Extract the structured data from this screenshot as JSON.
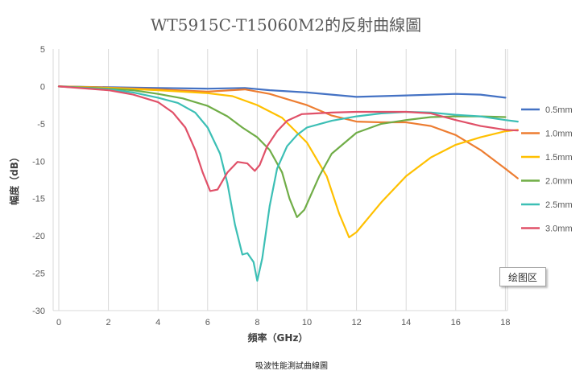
{
  "chart_data": {
    "type": "line",
    "title": "WT5915C-T15060M2的反射曲線圖",
    "xlabel": "頻率（GHz）",
    "ylabel": "幅度（dB）",
    "xlim": [
      0,
      18
    ],
    "ylim": [
      -30,
      5
    ],
    "x_ticks": [
      0,
      2,
      4,
      6,
      8,
      10,
      12,
      14,
      16,
      18
    ],
    "y_ticks": [
      5,
      0,
      -5,
      -10,
      -15,
      -20,
      -25,
      -30
    ],
    "grid": "vertical",
    "legend_position": "right",
    "series": [
      {
        "name": "0.5mm",
        "color": "#4472C4",
        "points": [
          [
            0,
            0
          ],
          [
            2,
            -0.1
          ],
          [
            4,
            -0.2
          ],
          [
            6,
            -0.3
          ],
          [
            7.5,
            -0.2
          ],
          [
            8.5,
            -0.5
          ],
          [
            10,
            -0.8
          ],
          [
            11,
            -1.1
          ],
          [
            12,
            -1.4
          ],
          [
            14,
            -1.2
          ],
          [
            16,
            -1.0
          ],
          [
            17,
            -1.1
          ],
          [
            18,
            -1.5
          ]
        ]
      },
      {
        "name": "1.0mm",
        "color": "#ED7D31",
        "points": [
          [
            0,
            0
          ],
          [
            2,
            -0.15
          ],
          [
            4,
            -0.4
          ],
          [
            6,
            -0.7
          ],
          [
            7.5,
            -0.4
          ],
          [
            8.5,
            -1.0
          ],
          [
            10,
            -2.5
          ],
          [
            11,
            -3.9
          ],
          [
            12,
            -4.7
          ],
          [
            13,
            -4.8
          ],
          [
            14,
            -4.8
          ],
          [
            15,
            -5.3
          ],
          [
            16,
            -6.5
          ],
          [
            17,
            -8.5
          ],
          [
            18,
            -11.0
          ],
          [
            18.5,
            -12.3
          ]
        ]
      },
      {
        "name": "1.5mm",
        "color": "#FFC000",
        "points": [
          [
            0,
            0
          ],
          [
            2,
            -0.2
          ],
          [
            4,
            -0.5
          ],
          [
            6,
            -0.9
          ],
          [
            7,
            -1.3
          ],
          [
            8,
            -2.5
          ],
          [
            9,
            -4.2
          ],
          [
            10,
            -7.5
          ],
          [
            10.8,
            -12
          ],
          [
            11.3,
            -17
          ],
          [
            11.7,
            -20.2
          ],
          [
            12,
            -19.5
          ],
          [
            12.5,
            -17.5
          ],
          [
            13,
            -15.5
          ],
          [
            14,
            -12
          ],
          [
            15,
            -9.5
          ],
          [
            16,
            -7.8
          ],
          [
            17,
            -6.8
          ],
          [
            18,
            -6.0
          ],
          [
            18.5,
            -5.8
          ]
        ]
      },
      {
        "name": "2.0mm",
        "color": "#70AD47",
        "points": [
          [
            0,
            0
          ],
          [
            2,
            -0.3
          ],
          [
            3,
            -0.5
          ],
          [
            4,
            -1.0
          ],
          [
            5,
            -1.6
          ],
          [
            6,
            -2.6
          ],
          [
            6.8,
            -4.0
          ],
          [
            7.4,
            -5.5
          ],
          [
            8,
            -6.8
          ],
          [
            8.5,
            -8.5
          ],
          [
            9,
            -11.5
          ],
          [
            9.3,
            -15
          ],
          [
            9.6,
            -17.5
          ],
          [
            9.9,
            -16.5
          ],
          [
            10.5,
            -12
          ],
          [
            11,
            -9
          ],
          [
            12,
            -6.2
          ],
          [
            13,
            -5.0
          ],
          [
            14,
            -4.5
          ],
          [
            15,
            -4.1
          ],
          [
            16,
            -4.0
          ],
          [
            17,
            -4.0
          ],
          [
            18,
            -4.1
          ]
        ]
      },
      {
        "name": "2.5mm",
        "color": "#3CBFB5",
        "points": [
          [
            0,
            0
          ],
          [
            2,
            -0.4
          ],
          [
            3,
            -0.8
          ],
          [
            4,
            -1.5
          ],
          [
            4.8,
            -2.2
          ],
          [
            5.5,
            -3.5
          ],
          [
            6,
            -5.5
          ],
          [
            6.5,
            -9
          ],
          [
            6.8,
            -13
          ],
          [
            7.1,
            -18.5
          ],
          [
            7.4,
            -22.5
          ],
          [
            7.6,
            -22.3
          ],
          [
            7.85,
            -23.5
          ],
          [
            8,
            -26
          ],
          [
            8.2,
            -23
          ],
          [
            8.5,
            -16
          ],
          [
            8.8,
            -11
          ],
          [
            9.2,
            -8
          ],
          [
            9.6,
            -6.5
          ],
          [
            10,
            -5.5
          ],
          [
            11,
            -4.6
          ],
          [
            12,
            -4.0
          ],
          [
            13,
            -3.6
          ],
          [
            14,
            -3.4
          ],
          [
            15,
            -3.5
          ],
          [
            16,
            -3.8
          ],
          [
            17,
            -4.0
          ],
          [
            18,
            -4.5
          ],
          [
            18.5,
            -4.7
          ]
        ]
      },
      {
        "name": "3.0mm",
        "color": "#E05068",
        "points": [
          [
            0,
            0
          ],
          [
            2,
            -0.5
          ],
          [
            3,
            -1.1
          ],
          [
            4,
            -2.1
          ],
          [
            4.6,
            -3.5
          ],
          [
            5.1,
            -5.5
          ],
          [
            5.5,
            -8.5
          ],
          [
            5.8,
            -11.5
          ],
          [
            6.1,
            -14.0
          ],
          [
            6.4,
            -13.8
          ],
          [
            6.8,
            -11.5
          ],
          [
            7.2,
            -10.1
          ],
          [
            7.6,
            -10.3
          ],
          [
            7.9,
            -11.3
          ],
          [
            8.1,
            -10.5
          ],
          [
            8.4,
            -8
          ],
          [
            8.8,
            -6.0
          ],
          [
            9.2,
            -4.6
          ],
          [
            9.8,
            -3.7
          ],
          [
            11,
            -3.5
          ],
          [
            12,
            -3.4
          ],
          [
            13,
            -3.4
          ],
          [
            14,
            -3.4
          ],
          [
            15,
            -3.6
          ],
          [
            16,
            -4.5
          ],
          [
            17,
            -5.3
          ],
          [
            18,
            -5.8
          ],
          [
            18.5,
            -5.9
          ]
        ]
      }
    ]
  },
  "plot_area_tag": "绘图区",
  "caption": "吸波性能測試曲線圖"
}
